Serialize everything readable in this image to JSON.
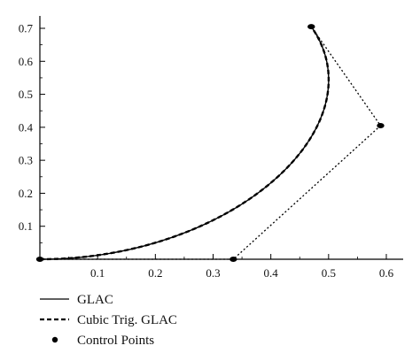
{
  "chart_data": {
    "type": "line",
    "title": "",
    "xlabel": "",
    "ylabel": "",
    "xlim": [
      0,
      0.61
    ],
    "ylim": [
      0,
      0.72
    ],
    "grid": false,
    "legend_position": "bottom-left",
    "x_ticks": [
      "0.1",
      "0.2",
      "0.3",
      "0.4",
      "0.5",
      "0.6"
    ],
    "y_ticks": [
      "0.1",
      "0.2",
      "0.3",
      "0.4",
      "0.5",
      "0.6",
      "0.7"
    ],
    "control_points": [
      [
        0,
        0
      ],
      [
        0.335,
        0
      ],
      [
        0.59,
        0.405
      ],
      [
        0.47,
        0.705
      ]
    ],
    "series": [
      {
        "name": "GLAC",
        "style": "solid",
        "points": [
          [
            0,
            0
          ],
          [
            0.05,
            0.004
          ],
          [
            0.1,
            0.014
          ],
          [
            0.15,
            0.031
          ],
          [
            0.2,
            0.055
          ],
          [
            0.25,
            0.087
          ],
          [
            0.3,
            0.13
          ],
          [
            0.35,
            0.183
          ],
          [
            0.4,
            0.25
          ],
          [
            0.45,
            0.33
          ],
          [
            0.48,
            0.39
          ],
          [
            0.5,
            0.45
          ],
          [
            0.505,
            0.5
          ],
          [
            0.502,
            0.55
          ],
          [
            0.495,
            0.6
          ],
          [
            0.485,
            0.65
          ],
          [
            0.47,
            0.705
          ]
        ]
      },
      {
        "name": "Cubic Trig. GLAC",
        "style": "dashed",
        "points": [
          [
            0,
            0
          ],
          [
            0.05,
            0.004
          ],
          [
            0.1,
            0.014
          ],
          [
            0.15,
            0.031
          ],
          [
            0.2,
            0.055
          ],
          [
            0.25,
            0.087
          ],
          [
            0.3,
            0.13
          ],
          [
            0.35,
            0.183
          ],
          [
            0.4,
            0.25
          ],
          [
            0.45,
            0.33
          ],
          [
            0.48,
            0.39
          ],
          [
            0.5,
            0.45
          ],
          [
            0.505,
            0.5
          ],
          [
            0.502,
            0.55
          ],
          [
            0.495,
            0.6
          ],
          [
            0.485,
            0.65
          ],
          [
            0.47,
            0.705
          ]
        ]
      }
    ],
    "legend": [
      {
        "label": "GLAC",
        "style": "solid"
      },
      {
        "label": "Cubic Trig. GLAC",
        "style": "dashed"
      },
      {
        "label": "Control Points",
        "style": "dot"
      }
    ]
  }
}
